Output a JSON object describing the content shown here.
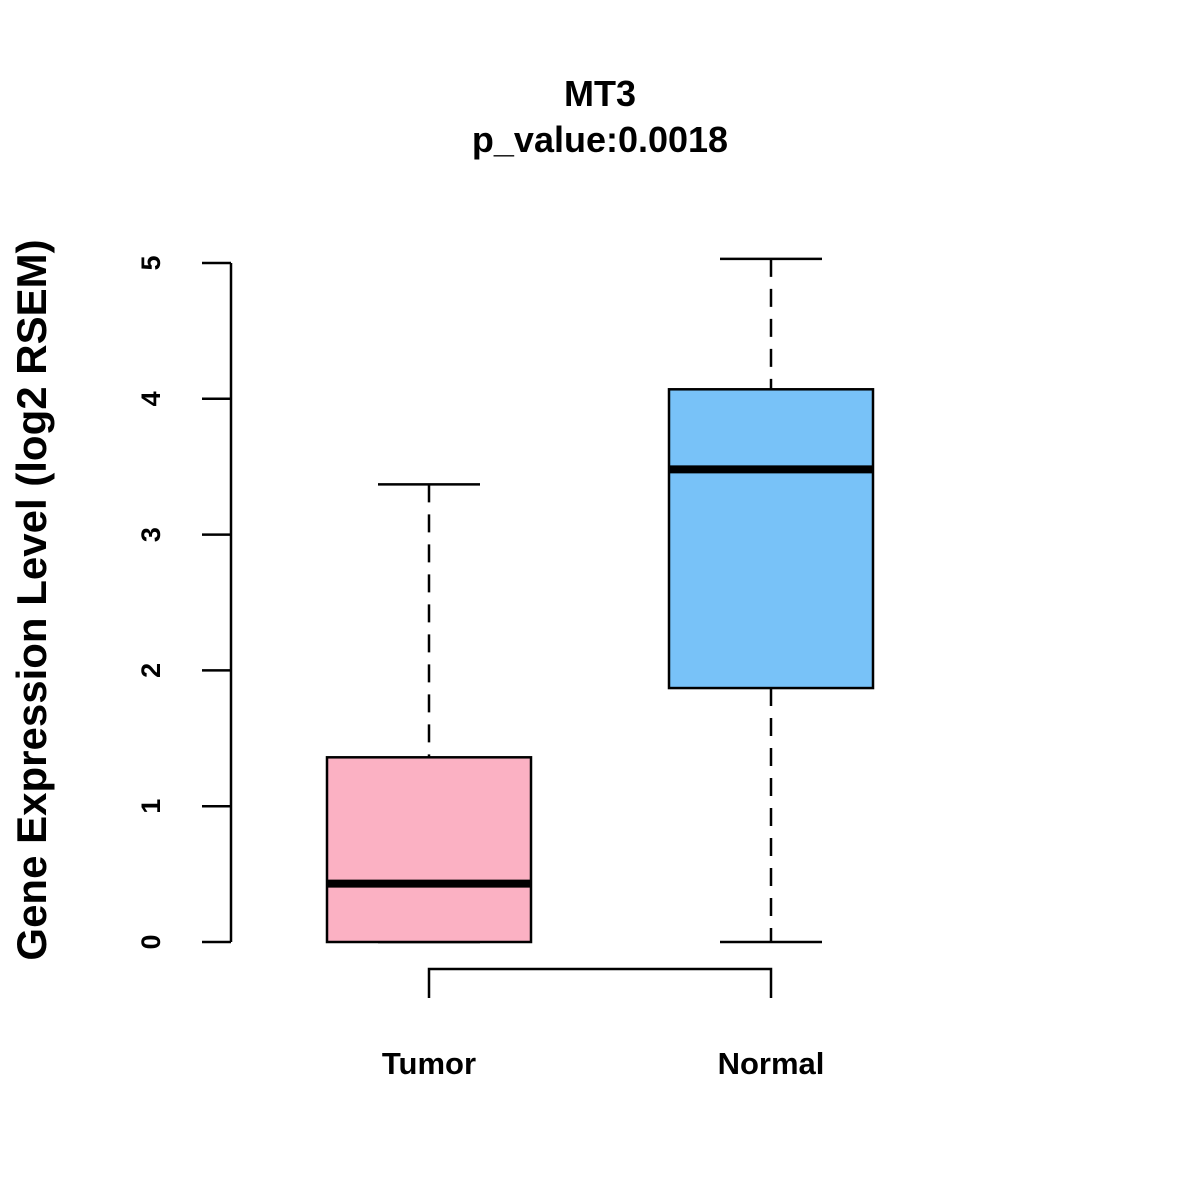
{
  "chart_data": {
    "type": "boxplot",
    "title": "MT3",
    "subtitle": "p_value:0.0018",
    "ylabel": "Gene Expression Level (log2 RSEM)",
    "xlabel": "",
    "ylim": [
      0,
      5
    ],
    "yticks": [
      0,
      1,
      2,
      3,
      4,
      5
    ],
    "categories": [
      "Tumor",
      "Normal"
    ],
    "series": [
      {
        "name": "Tumor",
        "color": "#FBB1C3",
        "whisker_low": 0.0,
        "q1": 0.0,
        "median": 0.43,
        "q3": 1.36,
        "whisker_high": 3.37
      },
      {
        "name": "Normal",
        "color": "#78C2F8",
        "whisker_low": 0.0,
        "q1": 1.87,
        "median": 3.48,
        "q3": 4.07,
        "whisker_high": 5.03
      }
    ],
    "comparison_bracket": {
      "from": "Tumor",
      "to": "Normal"
    }
  }
}
